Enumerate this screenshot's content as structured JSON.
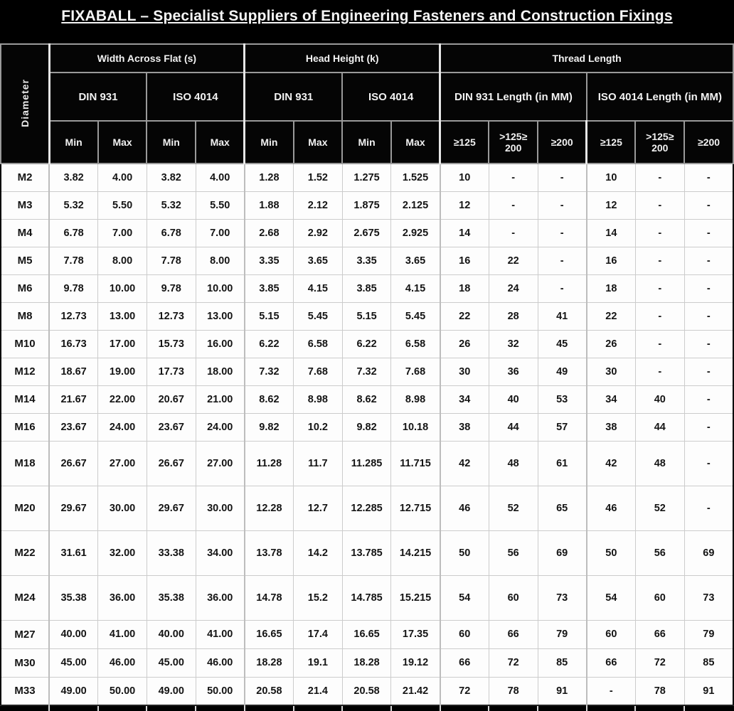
{
  "title": "FIXABALL – Specialist Suppliers of Engineering Fasteners and Construction  Fixings",
  "table": {
    "corner_header": "Diameter",
    "groups": [
      {
        "label": "Width Across Flat (s)",
        "subgroups": [
          {
            "label": "DIN 931",
            "cols": [
              "Min",
              "Max"
            ]
          },
          {
            "label": "ISO 4014",
            "cols": [
              "Min",
              "Max"
            ]
          }
        ]
      },
      {
        "label": "Head Height (k)",
        "subgroups": [
          {
            "label": "DIN 931",
            "cols": [
              "Min",
              "Max"
            ]
          },
          {
            "label": "ISO 4014",
            "cols": [
              "Min",
              "Max"
            ]
          }
        ]
      },
      {
        "label": "Thread Length",
        "subgroups": [
          {
            "label": "DIN 931 Length (in MM)",
            "cols": [
              "≥125",
              ">125≥ 200",
              "≥200"
            ]
          },
          {
            "label": "ISO 4014 Length (in MM)",
            "cols": [
              "≥125",
              ">125≥ 200",
              "≥200"
            ]
          }
        ]
      }
    ],
    "rows": [
      {
        "diameter": "M2",
        "tall": false,
        "values": [
          "3.82",
          "4.00",
          "3.82",
          "4.00",
          "1.28",
          "1.52",
          "1.275",
          "1.525",
          "10",
          "-",
          "-",
          "10",
          "-",
          "-"
        ]
      },
      {
        "diameter": "M3",
        "tall": false,
        "values": [
          "5.32",
          "5.50",
          "5.32",
          "5.50",
          "1.88",
          "2.12",
          "1.875",
          "2.125",
          "12",
          "-",
          "-",
          "12",
          "-",
          "-"
        ]
      },
      {
        "diameter": "M4",
        "tall": false,
        "values": [
          "6.78",
          "7.00",
          "6.78",
          "7.00",
          "2.68",
          "2.92",
          "2.675",
          "2.925",
          "14",
          "-",
          "-",
          "14",
          "-",
          "-"
        ]
      },
      {
        "diameter": "M5",
        "tall": false,
        "values": [
          "7.78",
          "8.00",
          "7.78",
          "8.00",
          "3.35",
          "3.65",
          "3.35",
          "3.65",
          "16",
          "22",
          "-",
          "16",
          "-",
          "-"
        ]
      },
      {
        "diameter": "M6",
        "tall": false,
        "values": [
          "9.78",
          "10.00",
          "9.78",
          "10.00",
          "3.85",
          "4.15",
          "3.85",
          "4.15",
          "18",
          "24",
          "-",
          "18",
          "-",
          "-"
        ]
      },
      {
        "diameter": "M8",
        "tall": false,
        "values": [
          "12.73",
          "13.00",
          "12.73",
          "13.00",
          "5.15",
          "5.45",
          "5.15",
          "5.45",
          "22",
          "28",
          "41",
          "22",
          "-",
          "-"
        ]
      },
      {
        "diameter": "M10",
        "tall": false,
        "values": [
          "16.73",
          "17.00",
          "15.73",
          "16.00",
          "6.22",
          "6.58",
          "6.22",
          "6.58",
          "26",
          "32",
          "45",
          "26",
          "-",
          "-"
        ]
      },
      {
        "diameter": "M12",
        "tall": false,
        "values": [
          "18.67",
          "19.00",
          "17.73",
          "18.00",
          "7.32",
          "7.68",
          "7.32",
          "7.68",
          "30",
          "36",
          "49",
          "30",
          "-",
          "-"
        ]
      },
      {
        "diameter": "M14",
        "tall": false,
        "values": [
          "21.67",
          "22.00",
          "20.67",
          "21.00",
          "8.62",
          "8.98",
          "8.62",
          "8.98",
          "34",
          "40",
          "53",
          "34",
          "40",
          "-"
        ]
      },
      {
        "diameter": "M16",
        "tall": false,
        "values": [
          "23.67",
          "24.00",
          "23.67",
          "24.00",
          "9.82",
          "10.2",
          "9.82",
          "10.18",
          "38",
          "44",
          "57",
          "38",
          "44",
          "-"
        ]
      },
      {
        "diameter": "M18",
        "tall": true,
        "values": [
          "26.67",
          "27.00",
          "26.67",
          "27.00",
          "11.28",
          "11.7",
          "11.285",
          "11.715",
          "42",
          "48",
          "61",
          "42",
          "48",
          "-"
        ]
      },
      {
        "diameter": "M20",
        "tall": true,
        "values": [
          "29.67",
          "30.00",
          "29.67",
          "30.00",
          "12.28",
          "12.7",
          "12.285",
          "12.715",
          "46",
          "52",
          "65",
          "46",
          "52",
          "-"
        ]
      },
      {
        "diameter": "M22",
        "tall": true,
        "values": [
          "31.61",
          "32.00",
          "33.38",
          "34.00",
          "13.78",
          "14.2",
          "13.785",
          "14.215",
          "50",
          "56",
          "69",
          "50",
          "56",
          "69"
        ]
      },
      {
        "diameter": "M24",
        "tall": true,
        "values": [
          "35.38",
          "36.00",
          "35.38",
          "36.00",
          "14.78",
          "15.2",
          "14.785",
          "15.215",
          "54",
          "60",
          "73",
          "54",
          "60",
          "73"
        ]
      },
      {
        "diameter": "M27",
        "tall": false,
        "values": [
          "40.00",
          "41.00",
          "40.00",
          "41.00",
          "16.65",
          "17.4",
          "16.65",
          "17.35",
          "60",
          "66",
          "79",
          "60",
          "66",
          "79"
        ]
      },
      {
        "diameter": "M30",
        "tall": false,
        "values": [
          "45.00",
          "46.00",
          "45.00",
          "46.00",
          "18.28",
          "19.1",
          "18.28",
          "19.12",
          "66",
          "72",
          "85",
          "66",
          "72",
          "85"
        ]
      },
      {
        "diameter": "M33",
        "tall": false,
        "values": [
          "49.00",
          "50.00",
          "49.00",
          "50.00",
          "20.58",
          "21.4",
          "20.58",
          "21.42",
          "72",
          "78",
          "91",
          "-",
          "78",
          "91"
        ]
      }
    ]
  }
}
